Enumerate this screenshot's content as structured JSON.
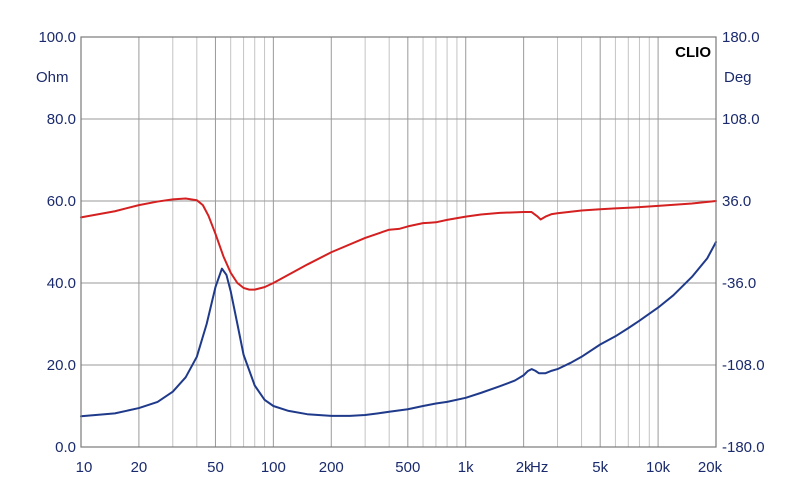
{
  "chart_data": {
    "type": "line",
    "brand": "CLIO",
    "x_scale": "log",
    "xlim": [
      10,
      20000
    ],
    "x_unit": "Hz",
    "x_ticks": [
      {
        "value": 10,
        "label": "10"
      },
      {
        "value": 20,
        "label": "20"
      },
      {
        "value": 50,
        "label": "50"
      },
      {
        "value": 100,
        "label": "100"
      },
      {
        "value": 200,
        "label": "200"
      },
      {
        "value": 500,
        "label": "500"
      },
      {
        "value": 1000,
        "label": "1k"
      },
      {
        "value": 2000,
        "label": "2k"
      },
      {
        "value": 5000,
        "label": "5k"
      },
      {
        "value": 10000,
        "label": "10k"
      },
      {
        "value": 20000,
        "label": "20k"
      }
    ],
    "y_left": {
      "unit": "Ohm",
      "ylim": [
        0,
        100
      ],
      "ticks": [
        {
          "value": 0,
          "label": "0.0"
        },
        {
          "value": 20,
          "label": "20.0"
        },
        {
          "value": 40,
          "label": "40.0"
        },
        {
          "value": 60,
          "label": "60.0"
        },
        {
          "value": 80,
          "label": "80.0"
        },
        {
          "value": 100,
          "label": "100.0"
        }
      ]
    },
    "y_right": {
      "unit": "Deg",
      "ylim": [
        -180,
        180
      ],
      "ticks": [
        {
          "value": -180,
          "label": "-180.0"
        },
        {
          "value": -108,
          "label": "-108.0"
        },
        {
          "value": -36,
          "label": "-36.0"
        },
        {
          "value": 36,
          "label": "36.0"
        },
        {
          "value": 108,
          "label": "108.0"
        },
        {
          "value": 180,
          "label": "180.0"
        }
      ]
    },
    "grid": true,
    "series": [
      {
        "axis": "left",
        "color": "#1f3a8a",
        "points": [
          [
            10,
            7.5
          ],
          [
            15,
            8.2
          ],
          [
            20,
            9.5
          ],
          [
            25,
            11.0
          ],
          [
            30,
            13.5
          ],
          [
            35,
            17.0
          ],
          [
            40,
            22.0
          ],
          [
            45,
            30.0
          ],
          [
            50,
            39.0
          ],
          [
            54,
            43.5
          ],
          [
            57,
            42.0
          ],
          [
            60,
            38.0
          ],
          [
            65,
            30.0
          ],
          [
            70,
            22.5
          ],
          [
            80,
            15.0
          ],
          [
            90,
            11.5
          ],
          [
            100,
            10.0
          ],
          [
            120,
            8.8
          ],
          [
            150,
            8.0
          ],
          [
            200,
            7.6
          ],
          [
            250,
            7.6
          ],
          [
            300,
            7.8
          ],
          [
            350,
            8.2
          ],
          [
            400,
            8.6
          ],
          [
            500,
            9.2
          ],
          [
            600,
            10.0
          ],
          [
            700,
            10.6
          ],
          [
            800,
            11.0
          ],
          [
            1000,
            12.0
          ],
          [
            1200,
            13.2
          ],
          [
            1500,
            14.8
          ],
          [
            1800,
            16.2
          ],
          [
            2000,
            17.5
          ],
          [
            2100,
            18.5
          ],
          [
            2200,
            19.0
          ],
          [
            2300,
            18.6
          ],
          [
            2400,
            18.0
          ],
          [
            2600,
            18.0
          ],
          [
            2800,
            18.6
          ],
          [
            3000,
            19.0
          ],
          [
            3500,
            20.5
          ],
          [
            4000,
            22.0
          ],
          [
            5000,
            25.0
          ],
          [
            6000,
            27.0
          ],
          [
            7000,
            29.0
          ],
          [
            8000,
            30.8
          ],
          [
            10000,
            34.0
          ],
          [
            12000,
            37.0
          ],
          [
            15000,
            41.5
          ],
          [
            18000,
            46.0
          ],
          [
            20000,
            50.0
          ]
        ]
      },
      {
        "axis": "right",
        "color": "#d42020",
        "points": [
          [
            10,
            21.6
          ],
          [
            15,
            27.0
          ],
          [
            20,
            32.4
          ],
          [
            25,
            35.5
          ],
          [
            30,
            37.4
          ],
          [
            35,
            38.2
          ],
          [
            40,
            36.7
          ],
          [
            43,
            32.4
          ],
          [
            46,
            23.0
          ],
          [
            50,
            7.2
          ],
          [
            55,
            -12.6
          ],
          [
            60,
            -27.0
          ],
          [
            65,
            -36.0
          ],
          [
            70,
            -40.3
          ],
          [
            75,
            -41.8
          ],
          [
            80,
            -41.8
          ],
          [
            90,
            -39.6
          ],
          [
            100,
            -36.0
          ],
          [
            150,
            -19.8
          ],
          [
            200,
            -9.0
          ],
          [
            300,
            3.6
          ],
          [
            400,
            10.8
          ],
          [
            450,
            11.5
          ],
          [
            500,
            13.7
          ],
          [
            600,
            16.6
          ],
          [
            650,
            16.9
          ],
          [
            700,
            17.3
          ],
          [
            800,
            19.4
          ],
          [
            1000,
            22.3
          ],
          [
            1200,
            24.1
          ],
          [
            1500,
            25.6
          ],
          [
            2000,
            26.3
          ],
          [
            2200,
            26.3
          ],
          [
            2350,
            22.7
          ],
          [
            2450,
            19.8
          ],
          [
            2600,
            22.3
          ],
          [
            2800,
            24.5
          ],
          [
            3000,
            25.2
          ],
          [
            4000,
            27.7
          ],
          [
            5000,
            28.8
          ],
          [
            6000,
            29.5
          ],
          [
            8000,
            30.6
          ],
          [
            10000,
            31.7
          ],
          [
            15000,
            33.8
          ],
          [
            20000,
            36.0
          ]
        ]
      }
    ]
  }
}
